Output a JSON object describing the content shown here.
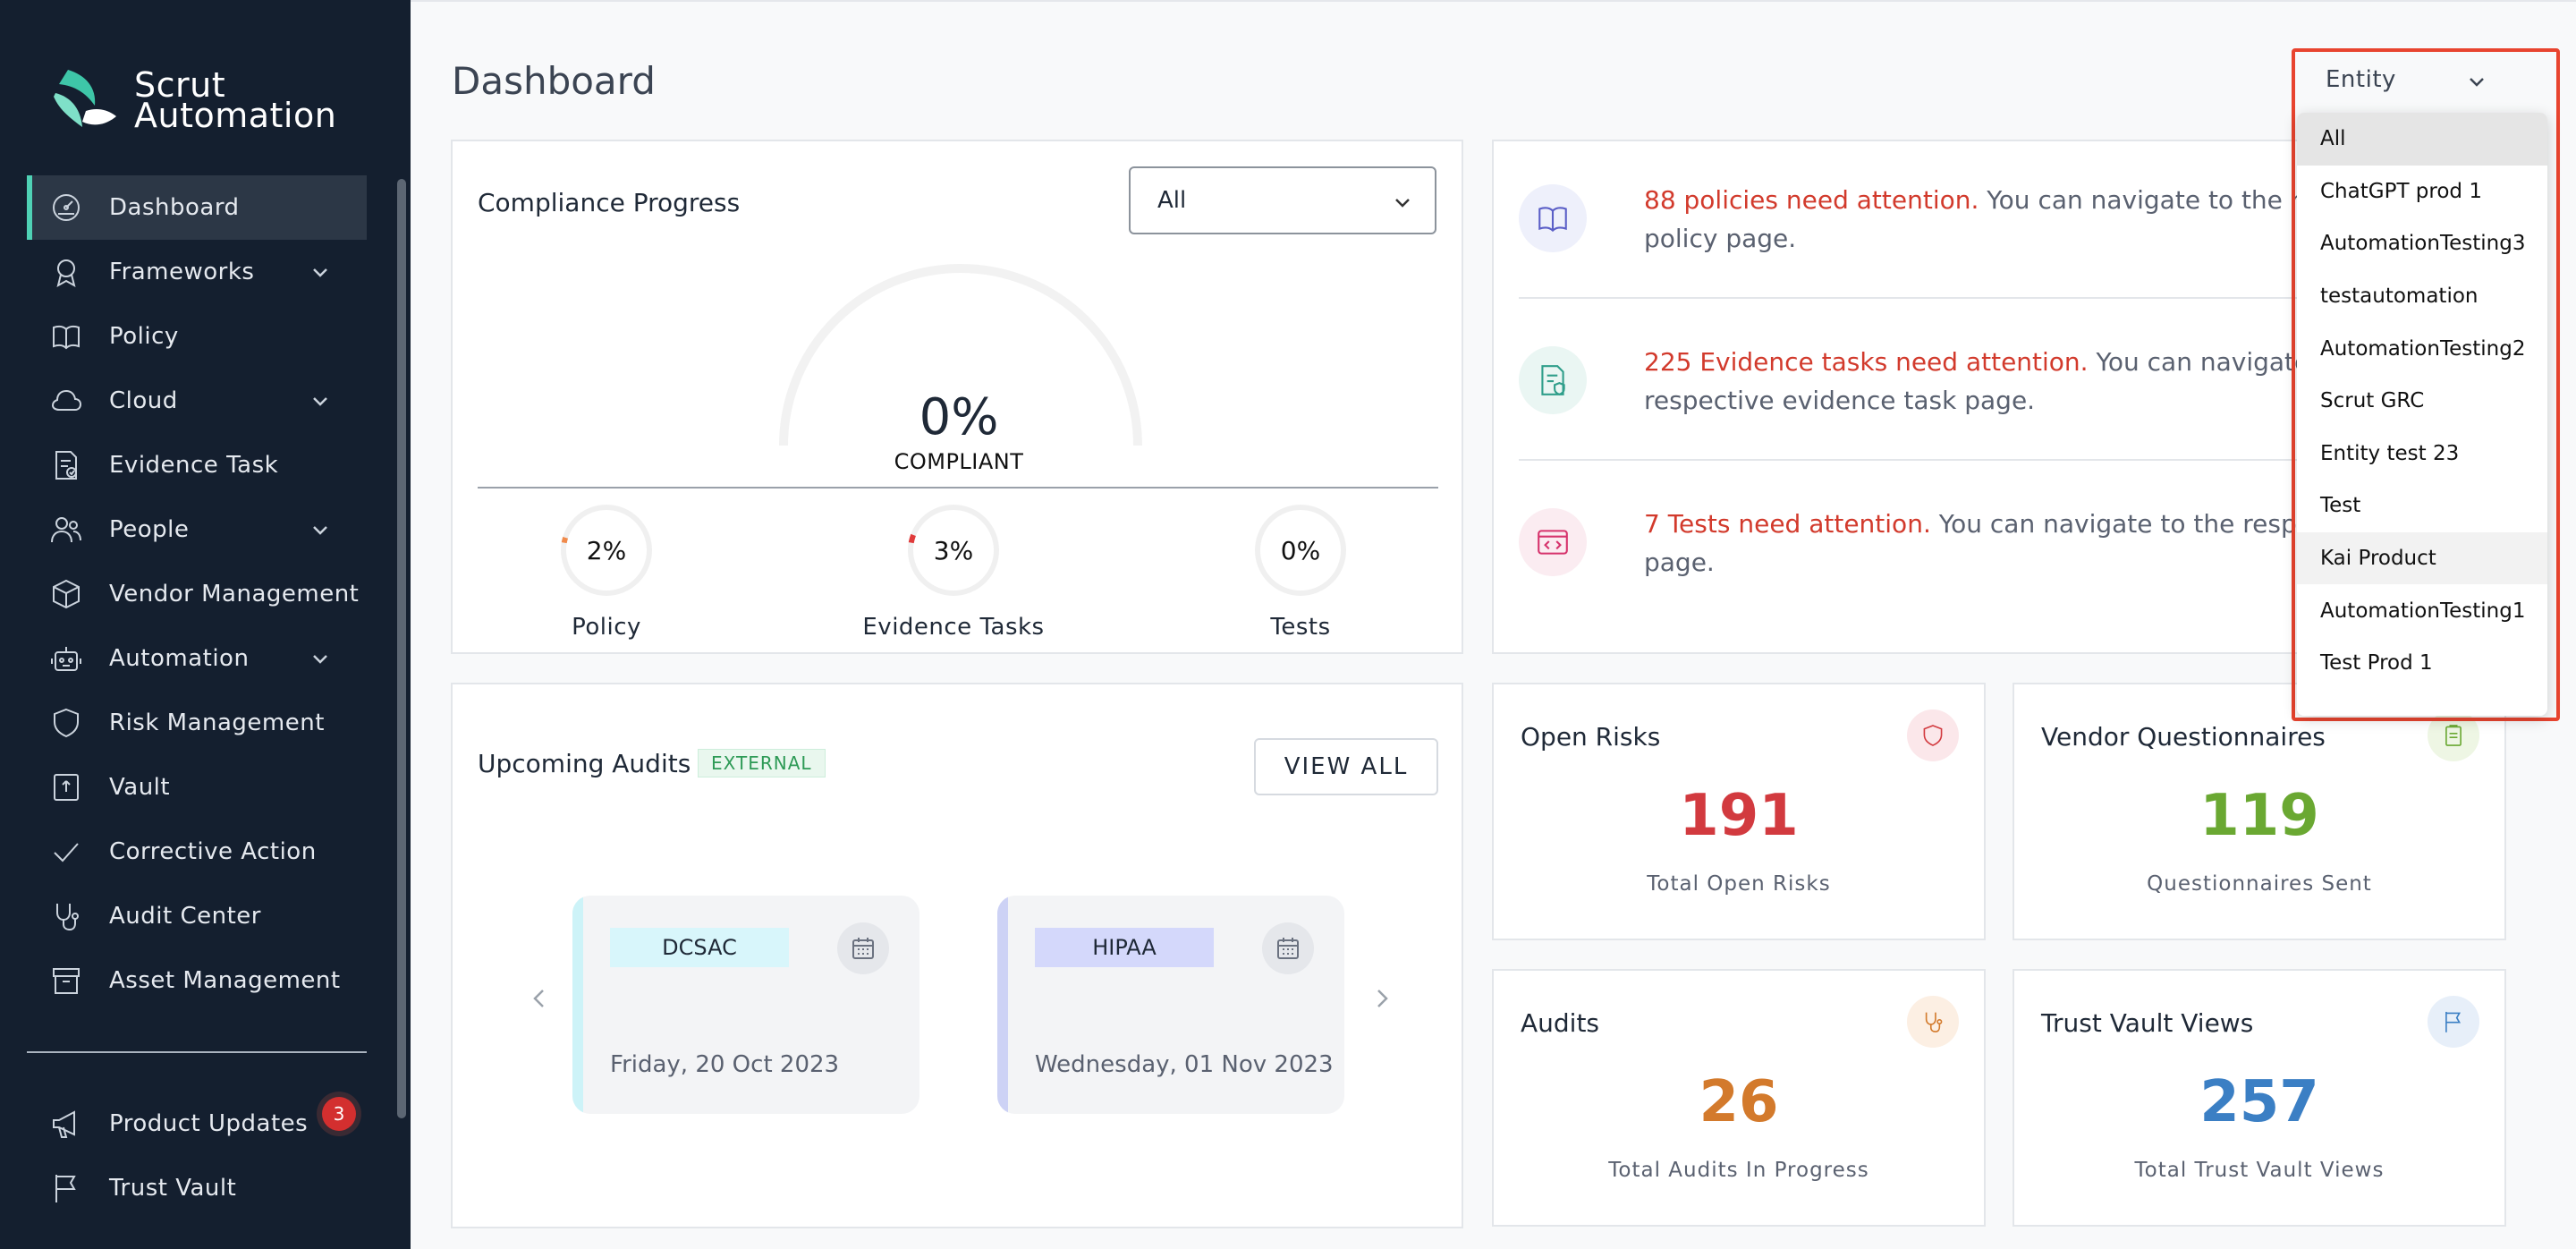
{
  "brand": {
    "line1": "Scrut",
    "line2": "Automation"
  },
  "sidebar": {
    "items": [
      {
        "label": "Dashboard",
        "icon": "dashboard-icon",
        "active": true,
        "expandable": false
      },
      {
        "label": "Frameworks",
        "icon": "award-icon",
        "expandable": true
      },
      {
        "label": "Policy",
        "icon": "book-icon",
        "expandable": false
      },
      {
        "label": "Cloud",
        "icon": "cloud-icon",
        "expandable": true
      },
      {
        "label": "Evidence Task",
        "icon": "file-check-icon",
        "expandable": false
      },
      {
        "label": "People",
        "icon": "people-icon",
        "expandable": true
      },
      {
        "label": "Vendor Management",
        "icon": "box-icon",
        "expandable": false
      },
      {
        "label": "Automation",
        "icon": "robot-icon",
        "expandable": true
      },
      {
        "label": "Risk Management",
        "icon": "shield-icon",
        "expandable": false
      },
      {
        "label": "Vault",
        "icon": "vault-icon",
        "expandable": false
      },
      {
        "label": "Corrective Action",
        "icon": "check-icon",
        "expandable": false
      },
      {
        "label": "Audit Center",
        "icon": "stethoscope-icon",
        "expandable": false
      },
      {
        "label": "Asset Management",
        "icon": "archive-icon",
        "expandable": false
      }
    ],
    "bottom_items": [
      {
        "label": "Product Updates",
        "icon": "megaphone-icon",
        "badge": "3"
      },
      {
        "label": "Trust Vault",
        "icon": "flag-icon"
      }
    ]
  },
  "page": {
    "title": "Dashboard"
  },
  "compliance": {
    "title": "Compliance Progress",
    "filter_value": "All",
    "overall_percent": "0%",
    "overall_label": "COMPLIANT",
    "overall_fraction": 0,
    "breakdown": [
      {
        "label": "Policy",
        "value": "2%",
        "fraction": 0.02,
        "color": "#f08a4b"
      },
      {
        "label": "Evidence Tasks",
        "value": "3%",
        "fraction": 0.03,
        "color": "#e03a3a"
      },
      {
        "label": "Tests",
        "value": "0%",
        "fraction": 0,
        "color": "#cccccc"
      }
    ]
  },
  "attention": [
    {
      "highlight": "88 policies need attention.",
      "rest": " You can navigate to the respective policy page.",
      "icon": "book-icon",
      "color": "#5b5fc7",
      "bg": "#eef0fb"
    },
    {
      "highlight": "225 Evidence tasks need attention.",
      "rest": " You can navigate to the respective evidence task page.",
      "icon": "file-shield-icon",
      "color": "#2f9e8a",
      "bg": "#eaf6f3"
    },
    {
      "highlight": "7 Tests need attention.",
      "rest": " You can navigate to the respective test page.",
      "icon": "code-window-icon",
      "color": "#d6336c",
      "bg": "#fbecf1"
    }
  ],
  "audits": {
    "title": "Upcoming Audits",
    "tag": "EXTERNAL",
    "view_all": "VIEW ALL",
    "cards": [
      {
        "framework": "DCSAC",
        "date": "Friday, 20 Oct 2023",
        "tag_bg": "#d8f6fb",
        "stripe": "#cdf3f8"
      },
      {
        "framework": "HIPAA",
        "date": "Wednesday, 01 Nov 2023",
        "tag_bg": "#d4d8fb",
        "stripe": "#cdd2f5"
      }
    ]
  },
  "stats": [
    {
      "title": "Open Risks",
      "value": "191",
      "subtitle": "Total Open Risks",
      "color": "#d23a3f",
      "icon": "shield-icon",
      "icon_bg": "#fbe7ea"
    },
    {
      "title": "Vendor Questionnaires",
      "value": "119",
      "subtitle": "Questionnaires Sent",
      "color": "#6aa832",
      "icon": "clipboard-icon",
      "icon_bg": "#eef6e4"
    },
    {
      "title": "Audits",
      "value": "26",
      "subtitle": "Total Audits In Progress",
      "color": "#d37a2c",
      "icon": "stethoscope-icon",
      "icon_bg": "#fcefe3"
    },
    {
      "title": "Trust Vault Views",
      "value": "257",
      "subtitle": "Total Trust Vault Views",
      "color": "#3b7fc4",
      "icon": "flag-icon",
      "icon_bg": "#e7eff9"
    }
  ],
  "entity_dropdown": {
    "label": "Entity",
    "options": [
      "All",
      "ChatGPT prod 1",
      "AutomationTesting3",
      "testautomation",
      "AutomationTesting2",
      "Scrut GRC",
      "Entity test 23",
      "Test",
      "Kai Product",
      "AutomationTesting1",
      "Test Prod 1"
    ],
    "selected": "All",
    "hovered": "Kai Product"
  }
}
